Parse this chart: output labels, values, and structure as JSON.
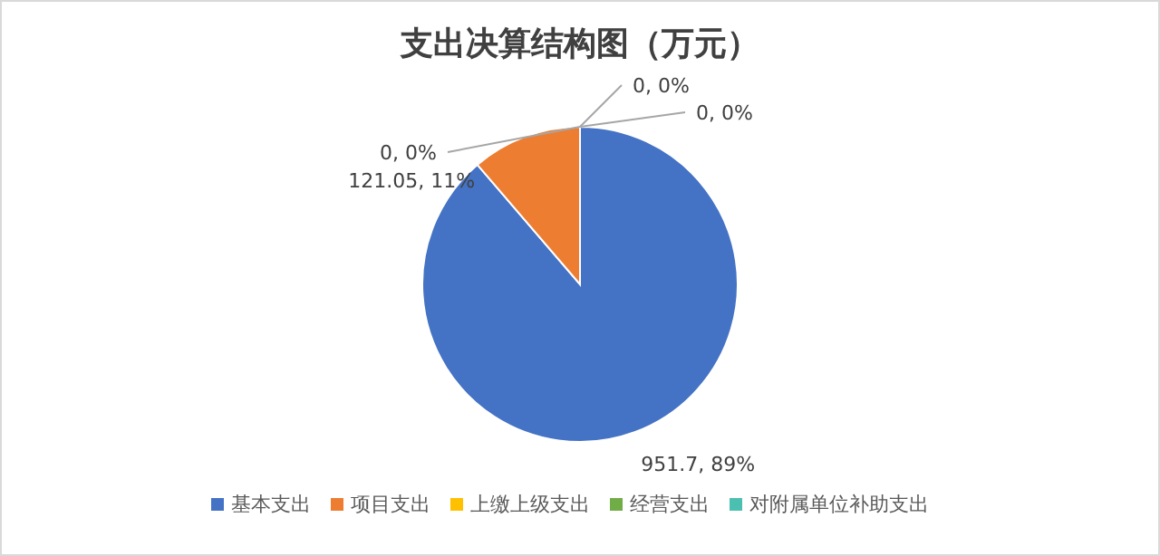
{
  "chart_data": {
    "type": "pie",
    "title": "支出决算结构图（万元）",
    "categories": [
      "基本支出",
      "项目支出",
      "上缴上级支出",
      "经营支出",
      "对附属单位补助支出"
    ],
    "values": [
      951.7,
      121.05,
      0,
      0,
      0
    ],
    "value_labels": [
      "951.7, 89%",
      "121.05, 11%",
      "0, 0%",
      "0, 0%",
      "0, 0%"
    ],
    "colors": [
      "#4472c4",
      "#ed7d31",
      "#ffc000",
      "#70ad47",
      "#4bc0b0"
    ],
    "legend": "bottom"
  }
}
